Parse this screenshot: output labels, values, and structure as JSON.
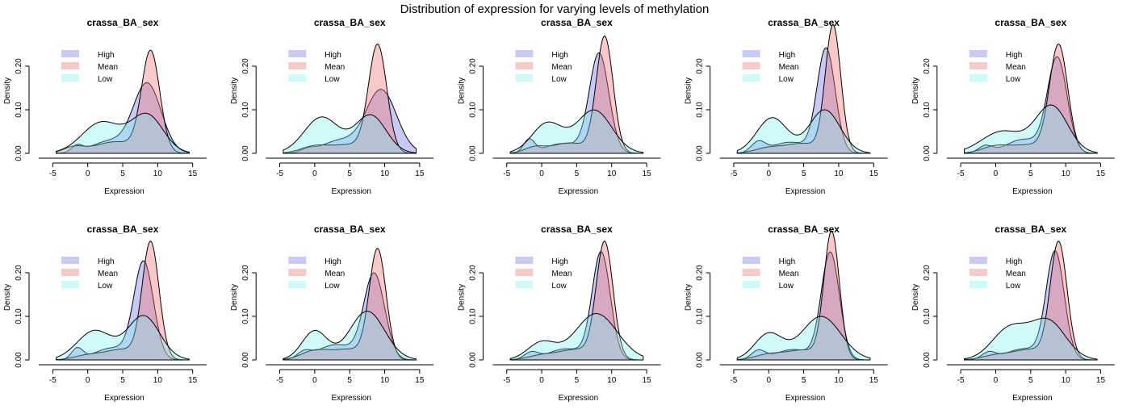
{
  "figure": {
    "title": "Distribution of expression for varying levels of methylation"
  },
  "series_styles": {
    "High": {
      "fill": "#6464e6",
      "opacity": 0.35
    },
    "Mean": {
      "fill": "#f07878",
      "opacity": 0.4
    },
    "Low": {
      "fill": "#78f0f0",
      "opacity": 0.35
    }
  },
  "chart_data": [
    {
      "type": "area",
      "title": "crassa_BA_sex",
      "xlabel": "Expression",
      "ylabel": "Density",
      "xlim": [
        -7,
        17
      ],
      "ylim": [
        0,
        0.25
      ],
      "xticks": [
        -5,
        0,
        5,
        10,
        15
      ],
      "yticks": [
        0.0,
        0.1,
        0.2
      ],
      "ytick_labels": [
        "0.00",
        "0.10",
        "0.20"
      ],
      "legend": "top-left",
      "series": [
        {
          "name": "High",
          "curve": [
            {
              "mu": -1.5,
              "sd": 0.8,
              "w": 0.03
            },
            {
              "mu": 3,
              "sd": 2.5,
              "w": 0.17
            },
            {
              "mu": 8.5,
              "sd": 2,
              "w": 0.8
            }
          ]
        },
        {
          "name": "Mean",
          "curve": [
            {
              "mu": -2,
              "sd": 1.5,
              "w": 0.05
            },
            {
              "mu": 4,
              "sd": 3,
              "w": 0.2
            },
            {
              "mu": 9,
              "sd": 1.3,
              "w": 0.75
            }
          ]
        },
        {
          "name": "Low",
          "curve": [
            {
              "mu": 2,
              "sd": 2.8,
              "w": 0.5
            },
            {
              "mu": 8.5,
              "sd": 2.3,
              "w": 0.5
            }
          ]
        }
      ]
    },
    {
      "type": "area",
      "title": "crassa_BA_sex",
      "xlabel": "Expression",
      "ylabel": "Density",
      "xlim": [
        -7,
        17
      ],
      "ylim": [
        0,
        0.25
      ],
      "xticks": [
        -5,
        0,
        5,
        10,
        15
      ],
      "yticks": [
        0.0,
        0.1,
        0.2
      ],
      "ytick_labels": [
        "0.00",
        "0.10",
        "0.20"
      ],
      "legend": "top-left",
      "series": [
        {
          "name": "High",
          "curve": [
            {
              "mu": -1,
              "sd": 1,
              "w": 0.02
            },
            {
              "mu": 3.5,
              "sd": 2.5,
              "w": 0.18
            },
            {
              "mu": 9.5,
              "sd": 2.2,
              "w": 0.8
            }
          ]
        },
        {
          "name": "Mean",
          "curve": [
            {
              "mu": 0,
              "sd": 2,
              "w": 0.08
            },
            {
              "mu": 5,
              "sd": 2.5,
              "w": 0.12
            },
            {
              "mu": 9,
              "sd": 1.3,
              "w": 0.8
            }
          ]
        },
        {
          "name": "Low",
          "curve": [
            {
              "mu": 1,
              "sd": 2.5,
              "w": 0.52
            },
            {
              "mu": 8,
              "sd": 2.2,
              "w": 0.48
            }
          ]
        }
      ]
    },
    {
      "type": "area",
      "title": "crassa_BA_sex",
      "xlabel": "Expression",
      "ylabel": "Density",
      "xlim": [
        -7,
        17
      ],
      "ylim": [
        0,
        0.25
      ],
      "xticks": [
        -5,
        0,
        5,
        10,
        15
      ],
      "yticks": [
        0.0,
        0.1,
        0.2
      ],
      "ytick_labels": [
        "0.00",
        "0.10",
        "0.20"
      ],
      "legend": "top-left",
      "series": [
        {
          "name": "High",
          "curve": [
            {
              "mu": -1.8,
              "sd": 0.8,
              "w": 0.06
            },
            {
              "mu": 3,
              "sd": 2.5,
              "w": 0.14
            },
            {
              "mu": 8.2,
              "sd": 1.4,
              "w": 0.8
            }
          ]
        },
        {
          "name": "Mean",
          "curve": [
            {
              "mu": -1,
              "sd": 1.5,
              "w": 0.05
            },
            {
              "mu": 4,
              "sd": 2.5,
              "w": 0.15
            },
            {
              "mu": 9,
              "sd": 1.2,
              "w": 0.8
            }
          ]
        },
        {
          "name": "Low",
          "curve": [
            {
              "mu": 0.8,
              "sd": 2.2,
              "w": 0.38
            },
            {
              "mu": 7.5,
              "sd": 2.5,
              "w": 0.62
            }
          ]
        }
      ]
    },
    {
      "type": "area",
      "title": "crassa_BA_sex",
      "xlabel": "Expression",
      "ylabel": "Density",
      "xlim": [
        -7,
        17
      ],
      "ylim": [
        0,
        0.25
      ],
      "xticks": [
        -5,
        0,
        5,
        10,
        15
      ],
      "yticks": [
        0.0,
        0.1,
        0.2
      ],
      "ytick_labels": [
        "0.00",
        "0.10",
        "0.20"
      ],
      "legend": "top-left",
      "series": [
        {
          "name": "High",
          "curve": [
            {
              "mu": -1.5,
              "sd": 1,
              "w": 0.06
            },
            {
              "mu": 3,
              "sd": 2.5,
              "w": 0.16
            },
            {
              "mu": 8.2,
              "sd": 1.3,
              "w": 0.78
            }
          ]
        },
        {
          "name": "Mean",
          "curve": [
            {
              "mu": 0,
              "sd": 2,
              "w": 0.06
            },
            {
              "mu": 5,
              "sd": 2.5,
              "w": 0.14
            },
            {
              "mu": 9.2,
              "sd": 1.1,
              "w": 0.8
            }
          ]
        },
        {
          "name": "Low",
          "curve": [
            {
              "mu": 0.5,
              "sd": 2.2,
              "w": 0.45
            },
            {
              "mu": 8,
              "sd": 2.2,
              "w": 0.55
            }
          ]
        }
      ]
    },
    {
      "type": "area",
      "title": "crassa_BA_sex",
      "xlabel": "Expression",
      "ylabel": "Density",
      "xlim": [
        -7,
        17
      ],
      "ylim": [
        0,
        0.25
      ],
      "xticks": [
        -5,
        0,
        5,
        10,
        15
      ],
      "yticks": [
        0.0,
        0.1,
        0.2
      ],
      "ytick_labels": [
        "0.00",
        "0.10",
        "0.20"
      ],
      "legend": "top-left",
      "series": [
        {
          "name": "High",
          "curve": [
            {
              "mu": -1.5,
              "sd": 1,
              "w": 0.04
            },
            {
              "mu": 4,
              "sd": 2.5,
              "w": 0.2
            },
            {
              "mu": 8.8,
              "sd": 1.4,
              "w": 0.76
            }
          ]
        },
        {
          "name": "Mean",
          "curve": [
            {
              "mu": 0,
              "sd": 2,
              "w": 0.08
            },
            {
              "mu": 5,
              "sd": 2.5,
              "w": 0.12
            },
            {
              "mu": 9,
              "sd": 1.3,
              "w": 0.8
            }
          ]
        },
        {
          "name": "Low",
          "curve": [
            {
              "mu": 1,
              "sd": 3,
              "w": 0.38
            },
            {
              "mu": 8,
              "sd": 2.3,
              "w": 0.62
            }
          ]
        }
      ]
    },
    {
      "type": "area",
      "title": "crassa_BA_sex",
      "xlabel": "Expression",
      "ylabel": "Density",
      "xlim": [
        -7,
        17
      ],
      "ylim": [
        0,
        0.25
      ],
      "xticks": [
        -5,
        0,
        5,
        10,
        15
      ],
      "yticks": [
        0.0,
        0.1,
        0.2
      ],
      "ytick_labels": [
        "0.00",
        "0.10",
        "0.20"
      ],
      "legend": "top-left",
      "series": [
        {
          "name": "High",
          "curve": [
            {
              "mu": -1.5,
              "sd": 0.8,
              "w": 0.05
            },
            {
              "mu": 3.5,
              "sd": 2.5,
              "w": 0.17
            },
            {
              "mu": 8,
              "sd": 1.4,
              "w": 0.78
            }
          ]
        },
        {
          "name": "Mean",
          "curve": [
            {
              "mu": 0,
              "sd": 2,
              "w": 0.05
            },
            {
              "mu": 5,
              "sd": 2.5,
              "w": 0.15
            },
            {
              "mu": 9,
              "sd": 1.2,
              "w": 0.8
            }
          ]
        },
        {
          "name": "Low",
          "curve": [
            {
              "mu": 1,
              "sd": 2.5,
              "w": 0.42
            },
            {
              "mu": 8,
              "sd": 2.3,
              "w": 0.58
            }
          ]
        }
      ]
    },
    {
      "type": "area",
      "title": "crassa_BA_sex",
      "xlabel": "Expression",
      "ylabel": "Density",
      "xlim": [
        -7,
        17
      ],
      "ylim": [
        0,
        0.25
      ],
      "xticks": [
        -5,
        0,
        5,
        10,
        15
      ],
      "yticks": [
        0.0,
        0.1,
        0.2
      ],
      "ytick_labels": [
        "0.00",
        "0.10",
        "0.20"
      ],
      "legend": "top-left",
      "series": [
        {
          "name": "High",
          "curve": [
            {
              "mu": -1.5,
              "sd": 1,
              "w": 0.04
            },
            {
              "mu": 3,
              "sd": 2.5,
              "w": 0.22
            },
            {
              "mu": 8.5,
              "sd": 1.5,
              "w": 0.74
            }
          ]
        },
        {
          "name": "Mean",
          "curve": [
            {
              "mu": 0,
              "sd": 2,
              "w": 0.1
            },
            {
              "mu": 5,
              "sd": 2.5,
              "w": 0.15
            },
            {
              "mu": 9,
              "sd": 1.2,
              "w": 0.75
            }
          ]
        },
        {
          "name": "Low",
          "curve": [
            {
              "mu": 0,
              "sd": 1.8,
              "w": 0.3
            },
            {
              "mu": 7.5,
              "sd": 2.5,
              "w": 0.7
            }
          ]
        }
      ]
    },
    {
      "type": "area",
      "title": "crassa_BA_sex",
      "xlabel": "Expression",
      "ylabel": "Density",
      "xlim": [
        -7,
        17
      ],
      "ylim": [
        0,
        0.25
      ],
      "xticks": [
        -5,
        0,
        5,
        10,
        15
      ],
      "yticks": [
        0.0,
        0.1,
        0.2
      ],
      "ytick_labels": [
        "0.00",
        "0.10",
        "0.20"
      ],
      "legend": "top-left",
      "series": [
        {
          "name": "High",
          "curve": [
            {
              "mu": -1.5,
              "sd": 1,
              "w": 0.04
            },
            {
              "mu": 3.5,
              "sd": 2.5,
              "w": 0.16
            },
            {
              "mu": 8.5,
              "sd": 1.3,
              "w": 0.8
            }
          ]
        },
        {
          "name": "Mean",
          "curve": [
            {
              "mu": 0,
              "sd": 2,
              "w": 0.05
            },
            {
              "mu": 5,
              "sd": 2.5,
              "w": 0.15
            },
            {
              "mu": 9,
              "sd": 1.2,
              "w": 0.8
            }
          ]
        },
        {
          "name": "Low",
          "curve": [
            {
              "mu": 0,
              "sd": 2,
              "w": 0.2
            },
            {
              "mu": 7.8,
              "sd": 3,
              "w": 0.8
            }
          ]
        }
      ]
    },
    {
      "type": "area",
      "title": "crassa_BA_sex",
      "xlabel": "Expression",
      "ylabel": "Density",
      "xlim": [
        -7,
        17
      ],
      "ylim": [
        0,
        0.25
      ],
      "xticks": [
        -5,
        0,
        5,
        10,
        15
      ],
      "yticks": [
        0.0,
        0.1,
        0.2
      ],
      "ytick_labels": [
        "0.00",
        "0.10",
        "0.20"
      ],
      "legend": "top-left",
      "series": [
        {
          "name": "High",
          "curve": [
            {
              "mu": -1.5,
              "sd": 1,
              "w": 0.05
            },
            {
              "mu": 3.5,
              "sd": 2.5,
              "w": 0.15
            },
            {
              "mu": 8.8,
              "sd": 1.3,
              "w": 0.8
            }
          ]
        },
        {
          "name": "Mean",
          "curve": [
            {
              "mu": 0,
              "sd": 2,
              "w": 0.06
            },
            {
              "mu": 5,
              "sd": 2.5,
              "w": 0.14
            },
            {
              "mu": 9,
              "sd": 1.1,
              "w": 0.8
            }
          ]
        },
        {
          "name": "Low",
          "curve": [
            {
              "mu": 0,
              "sd": 2,
              "w": 0.3
            },
            {
              "mu": 7.5,
              "sd": 2.8,
              "w": 0.7
            }
          ]
        }
      ]
    },
    {
      "type": "area",
      "title": "crassa_BA_sex",
      "xlabel": "Expression",
      "ylabel": "Density",
      "xlim": [
        -7,
        17
      ],
      "ylim": [
        0,
        0.25
      ],
      "xticks": [
        -5,
        0,
        5,
        10,
        15
      ],
      "yticks": [
        0.0,
        0.1,
        0.2
      ],
      "ytick_labels": [
        "0.00",
        "0.10",
        "0.20"
      ],
      "legend": "top-left",
      "series": [
        {
          "name": "High",
          "curve": [
            {
              "mu": -1,
              "sd": 1,
              "w": 0.04
            },
            {
              "mu": 4,
              "sd": 2.5,
              "w": 0.16
            },
            {
              "mu": 8.5,
              "sd": 1.3,
              "w": 0.8
            }
          ]
        },
        {
          "name": "Mean",
          "curve": [
            {
              "mu": 0,
              "sd": 2,
              "w": 0.05
            },
            {
              "mu": 5,
              "sd": 2.5,
              "w": 0.15
            },
            {
              "mu": 9,
              "sd": 1.2,
              "w": 0.8
            }
          ]
        },
        {
          "name": "Low",
          "curve": [
            {
              "mu": 2,
              "sd": 2.5,
              "w": 0.45
            },
            {
              "mu": 7.5,
              "sd": 2.5,
              "w": 0.55
            }
          ]
        }
      ]
    }
  ]
}
